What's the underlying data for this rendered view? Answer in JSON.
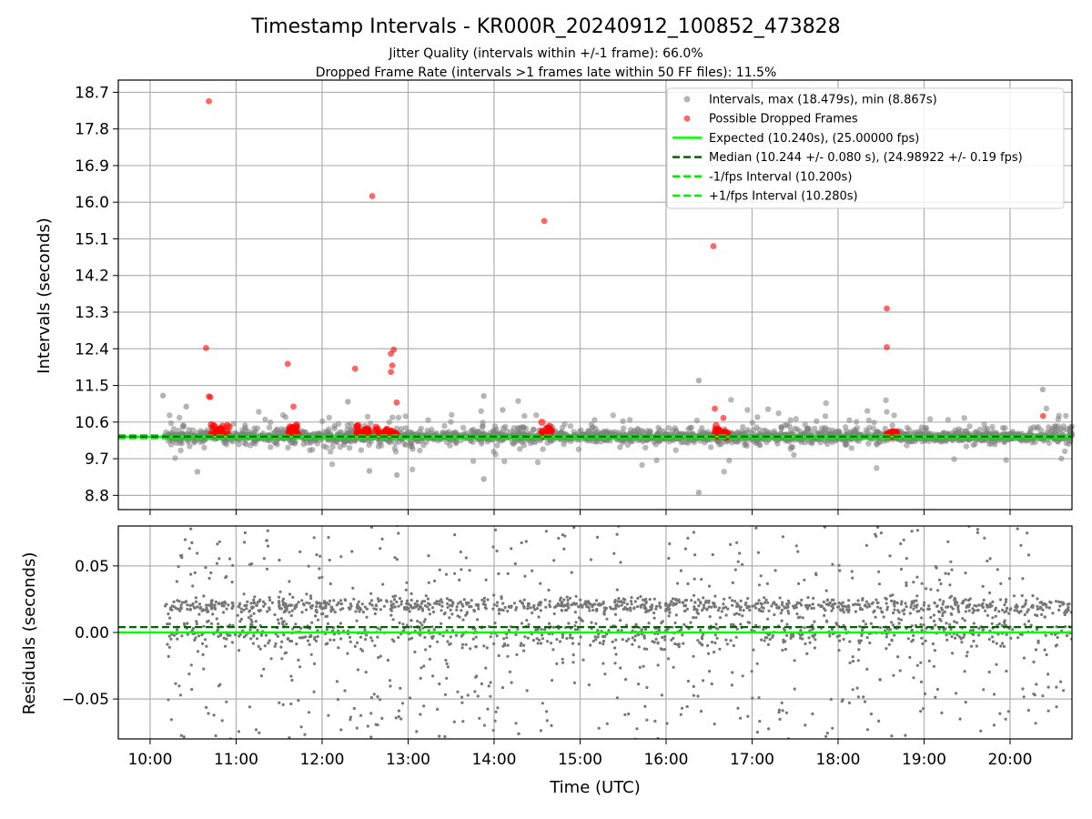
{
  "figure": {
    "title": "Timestamp Intervals - KR000R_20240912_100852_473828",
    "subtitle1": "Jitter Quality (intervals within +/-1 frame): 66.0%",
    "subtitle2": "Dropped Frame Rate (intervals >1 frames late within 50 FF files): 11.5%"
  },
  "chart_data": [
    {
      "type": "scatter",
      "panel": "top",
      "ylabel": "Intervals (seconds)",
      "xlabel": "",
      "ylim": [
        8.45,
        19.0
      ],
      "yticks": [
        "8.8",
        "9.7",
        "10.6",
        "11.5",
        "12.4",
        "13.3",
        "14.2",
        "15.1",
        "16.0",
        "16.9",
        "17.8",
        "18.7"
      ],
      "xlim_hours": [
        9.63,
        20.72
      ],
      "grid": true,
      "legend_position": "top-right",
      "legend": [
        "Intervals, max (18.479s), min (8.867s)",
        "Possible Dropped Frames",
        "Expected (10.240s), (25.00000 fps)",
        "Median (10.244 +/- 0.080 s), (24.98922 +/- 0.19 fps)",
        "-1/fps Interval (10.200s)",
        "+1/fps Interval (10.280s)"
      ],
      "series": [
        {
          "name": "Intervals, max (18.479s), min (8.867s)",
          "color": "#808080",
          "x_time": "HH:MM",
          "y_seconds": []
        },
        {
          "name": "Possible Dropped Frames",
          "color": "#ff0000",
          "points": [
            {
              "time": "10:41",
              "interval": 18.48
            },
            {
              "time": "10:39",
              "interval": 12.42
            },
            {
              "time": "10:41",
              "interval": 11.23
            },
            {
              "time": "10:42",
              "interval": 11.21
            },
            {
              "time": "11:36",
              "interval": 12.03
            },
            {
              "time": "11:40",
              "interval": 10.98
            },
            {
              "time": "12:35",
              "interval": 16.15
            },
            {
              "time": "12:23",
              "interval": 11.91
            },
            {
              "time": "12:48",
              "interval": 12.28
            },
            {
              "time": "12:50",
              "interval": 12.38
            },
            {
              "time": "12:49",
              "interval": 11.99
            },
            {
              "time": "12:48",
              "interval": 11.83
            },
            {
              "time": "12:52",
              "interval": 11.08
            },
            {
              "time": "14:35",
              "interval": 15.54
            },
            {
              "time": "16:33",
              "interval": 14.92
            },
            {
              "time": "16:34",
              "interval": 10.93
            },
            {
              "time": "16:40",
              "interval": 10.7
            },
            {
              "time": "18:34",
              "interval": 13.39
            },
            {
              "time": "18:34",
              "interval": 12.44
            },
            {
              "time": "20:23",
              "interval": 10.75
            }
          ],
          "clusters": [
            {
              "from": "10:42",
              "to": "10:55",
              "interval": 10.35
            },
            {
              "from": "11:37",
              "to": "11:43",
              "interval": 10.35
            },
            {
              "from": "12:24",
              "to": "12:33",
              "interval": 10.38
            },
            {
              "from": "12:37",
              "to": "12:52",
              "interval": 10.35
            },
            {
              "from": "14:33",
              "to": "14:40",
              "interval": 10.33
            },
            {
              "from": "16:34",
              "to": "16:43",
              "interval": 10.3
            },
            {
              "from": "18:34",
              "to": "18:41",
              "interval": 10.3
            }
          ]
        }
      ],
      "reference_lines": {
        "expected": 10.24,
        "median": 10.244,
        "minus_one_fps": 10.2,
        "plus_one_fps": 10.28
      },
      "colors": {
        "expected": "#00ff00",
        "median": "#006400",
        "interval_bounds": "#00ee00"
      }
    },
    {
      "type": "scatter",
      "panel": "bottom",
      "ylabel": "Residuals (seconds)",
      "xlabel": "Time (UTC)",
      "ylim": [
        -0.08,
        0.08
      ],
      "yticks": [
        "−0.05",
        "0.00",
        "0.05"
      ],
      "xticks": [
        "10:00",
        "11:00",
        "12:00",
        "13:00",
        "14:00",
        "15:00",
        "16:00",
        "17:00",
        "18:00",
        "19:00",
        "20:00"
      ],
      "xlim_hours": [
        9.63,
        20.72
      ],
      "grid": true,
      "reference_lines": {
        "expected": 0.0,
        "median": 0.004
      },
      "series": [
        {
          "name": "",
          "color": "#808080"
        }
      ]
    }
  ]
}
